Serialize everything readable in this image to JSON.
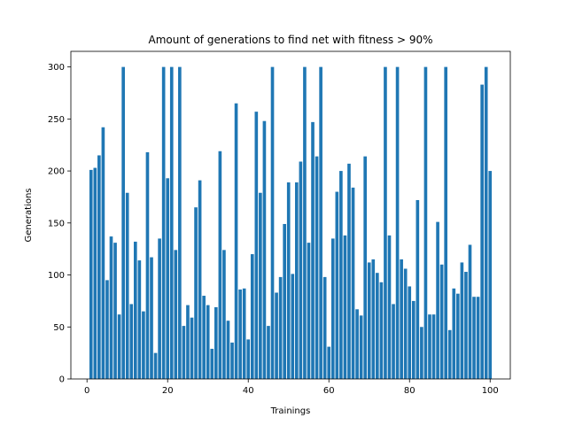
{
  "chart_data": {
    "type": "bar",
    "title": "Amount of generations to find net with fitness > 90%",
    "xlabel": "Trainings",
    "ylabel": "Generations",
    "xlim": [
      -4,
      105
    ],
    "ylim": [
      0,
      315
    ],
    "xticks": [
      0,
      20,
      40,
      60,
      80,
      100
    ],
    "yticks": [
      0,
      50,
      100,
      150,
      200,
      250,
      300
    ],
    "bar_color": "#1f77b4",
    "grid": false,
    "x": [
      1,
      2,
      3,
      4,
      5,
      6,
      7,
      8,
      9,
      10,
      11,
      12,
      13,
      14,
      15,
      16,
      17,
      18,
      19,
      20,
      21,
      22,
      23,
      24,
      25,
      26,
      27,
      28,
      29,
      30,
      31,
      32,
      33,
      34,
      35,
      36,
      37,
      38,
      39,
      40,
      41,
      42,
      43,
      44,
      45,
      46,
      47,
      48,
      49,
      50,
      51,
      52,
      53,
      54,
      55,
      56,
      57,
      58,
      59,
      60,
      61,
      62,
      63,
      64,
      65,
      66,
      67,
      68,
      69,
      70,
      71,
      72,
      73,
      74,
      75,
      76,
      77,
      78,
      79,
      80,
      81,
      82,
      83,
      84,
      85,
      86,
      87,
      88,
      89,
      90,
      91,
      92,
      93,
      94,
      95,
      96,
      97,
      98,
      99,
      100
    ],
    "values": [
      201,
      203,
      215,
      242,
      95,
      137,
      131,
      62,
      300,
      179,
      72,
      132,
      114,
      65,
      218,
      117,
      25,
      135,
      300,
      193,
      300,
      124,
      300,
      51,
      71,
      59,
      165,
      191,
      80,
      71,
      29,
      69,
      219,
      124,
      56,
      35,
      265,
      86,
      87,
      38,
      120,
      257,
      179,
      248,
      51,
      300,
      83,
      98,
      149,
      189,
      101,
      189,
      209,
      300,
      131,
      247,
      214,
      300,
      98,
      31,
      135,
      180,
      200,
      138,
      207,
      184,
      67,
      61,
      214,
      112,
      115,
      102,
      93,
      300,
      138,
      72,
      300,
      115,
      106,
      89,
      75,
      172,
      50,
      300,
      62,
      62,
      151,
      110,
      300,
      47,
      87,
      82,
      112,
      103,
      129,
      79,
      79,
      283,
      300,
      200
    ]
  }
}
